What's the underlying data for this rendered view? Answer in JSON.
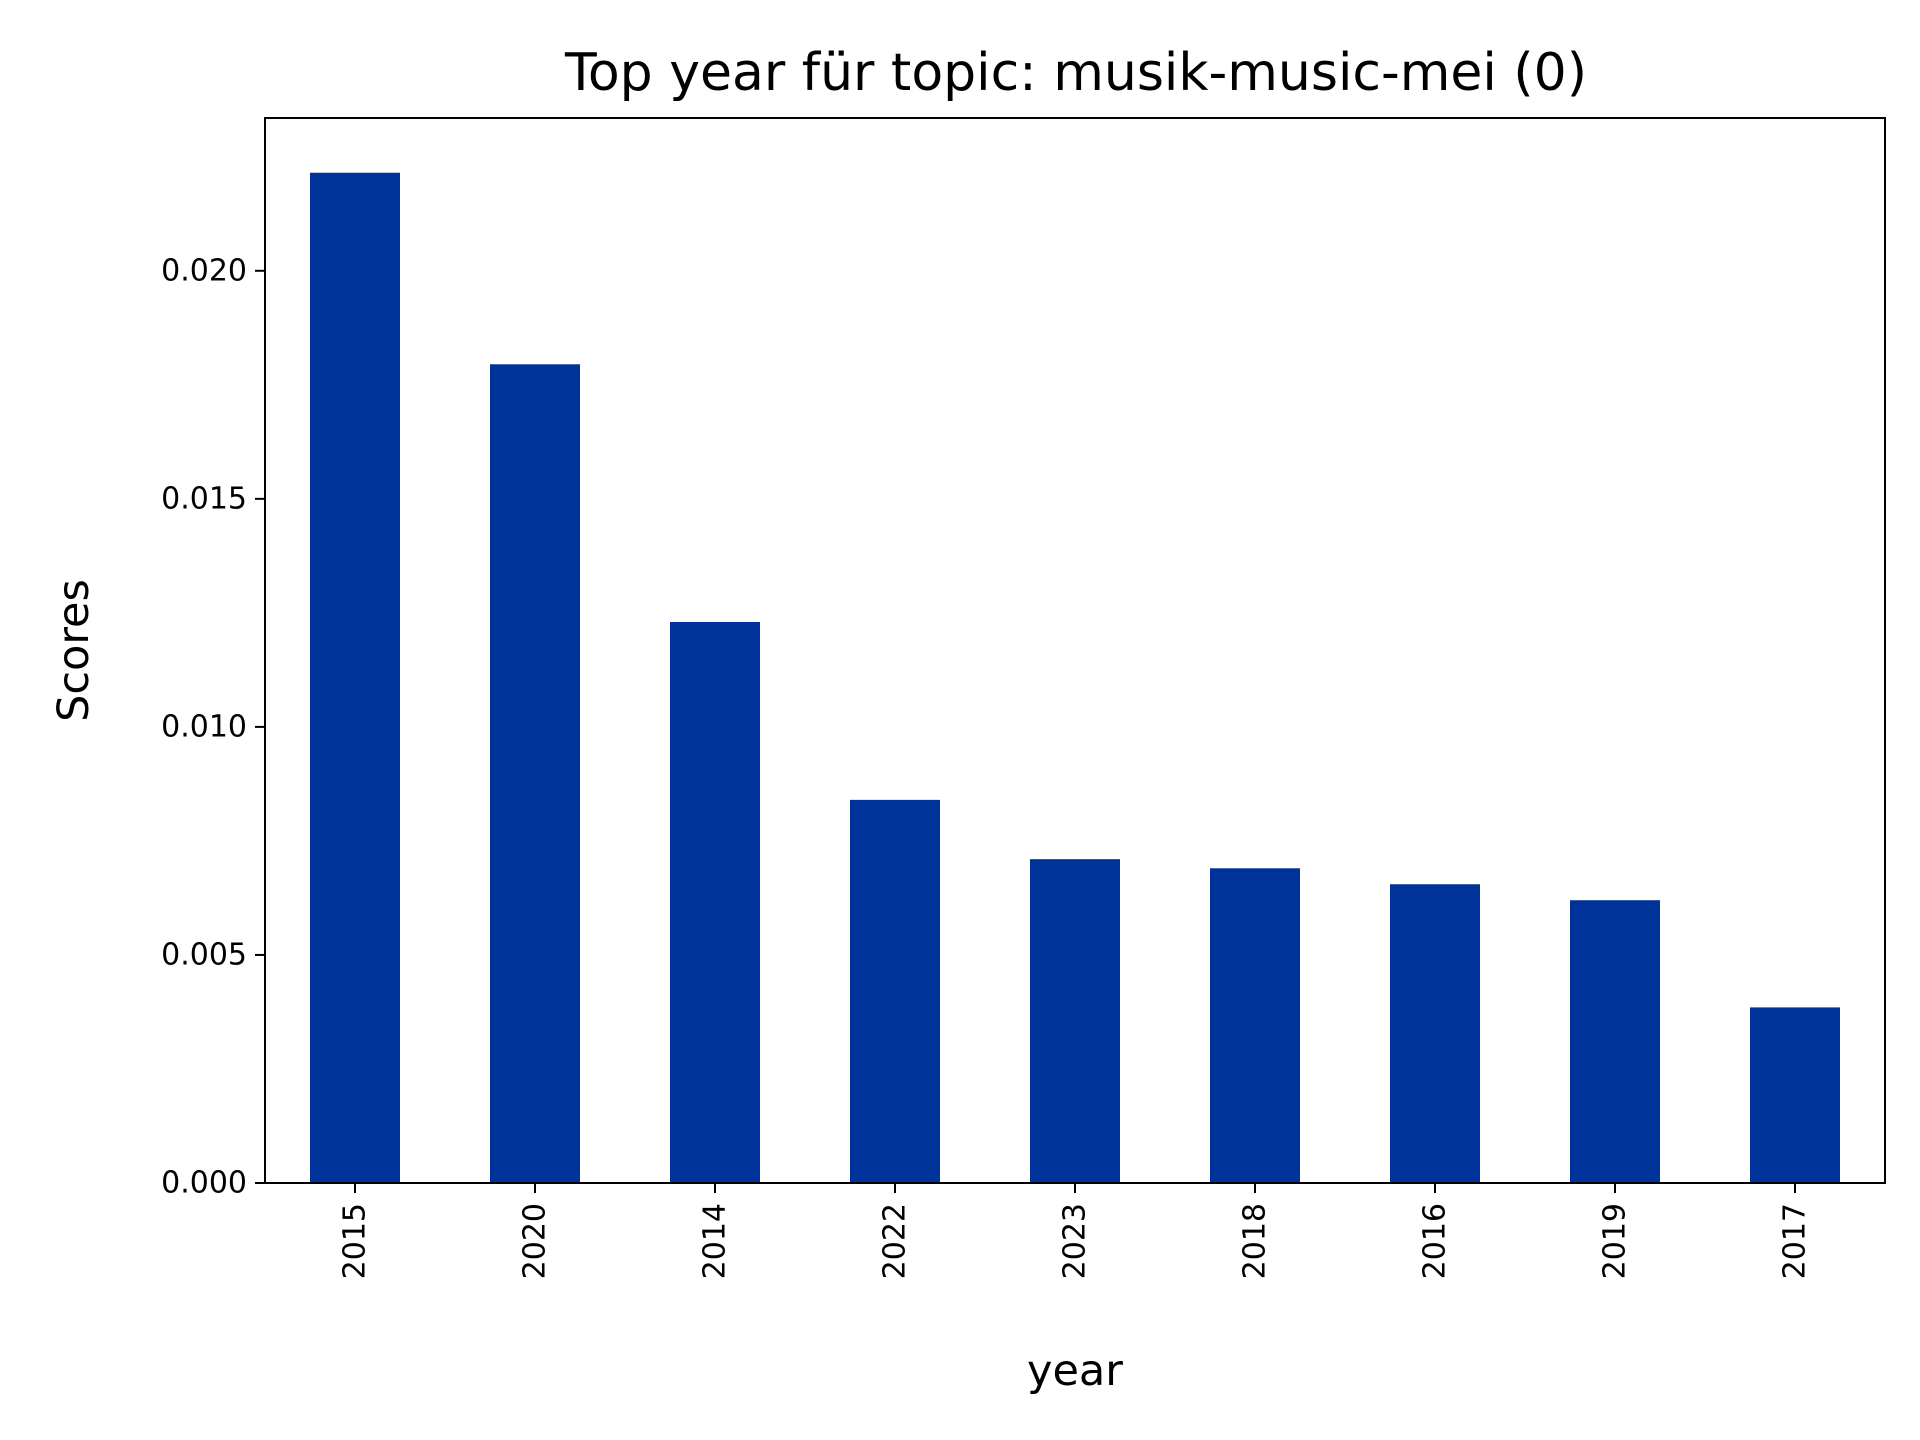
{
  "chart_data": {
    "type": "bar",
    "title": "Top year für topic: musik-music-mei (0)",
    "xlabel": "year",
    "ylabel": "Scores",
    "categories": [
      "2015",
      "2020",
      "2014",
      "2022",
      "2023",
      "2018",
      "2016",
      "2019",
      "2017"
    ],
    "values": [
      0.02215,
      0.01795,
      0.0123,
      0.0084,
      0.0071,
      0.0069,
      0.00655,
      0.0062,
      0.00385
    ],
    "ylim": [
      0,
      0.02335
    ],
    "yticks": [
      0.0,
      0.005,
      0.01,
      0.015,
      0.02
    ],
    "ytick_labels": [
      "0.000",
      "0.005",
      "0.010",
      "0.015",
      "0.020"
    ],
    "bar_color": "#003399",
    "grid": false,
    "legend": "none"
  }
}
